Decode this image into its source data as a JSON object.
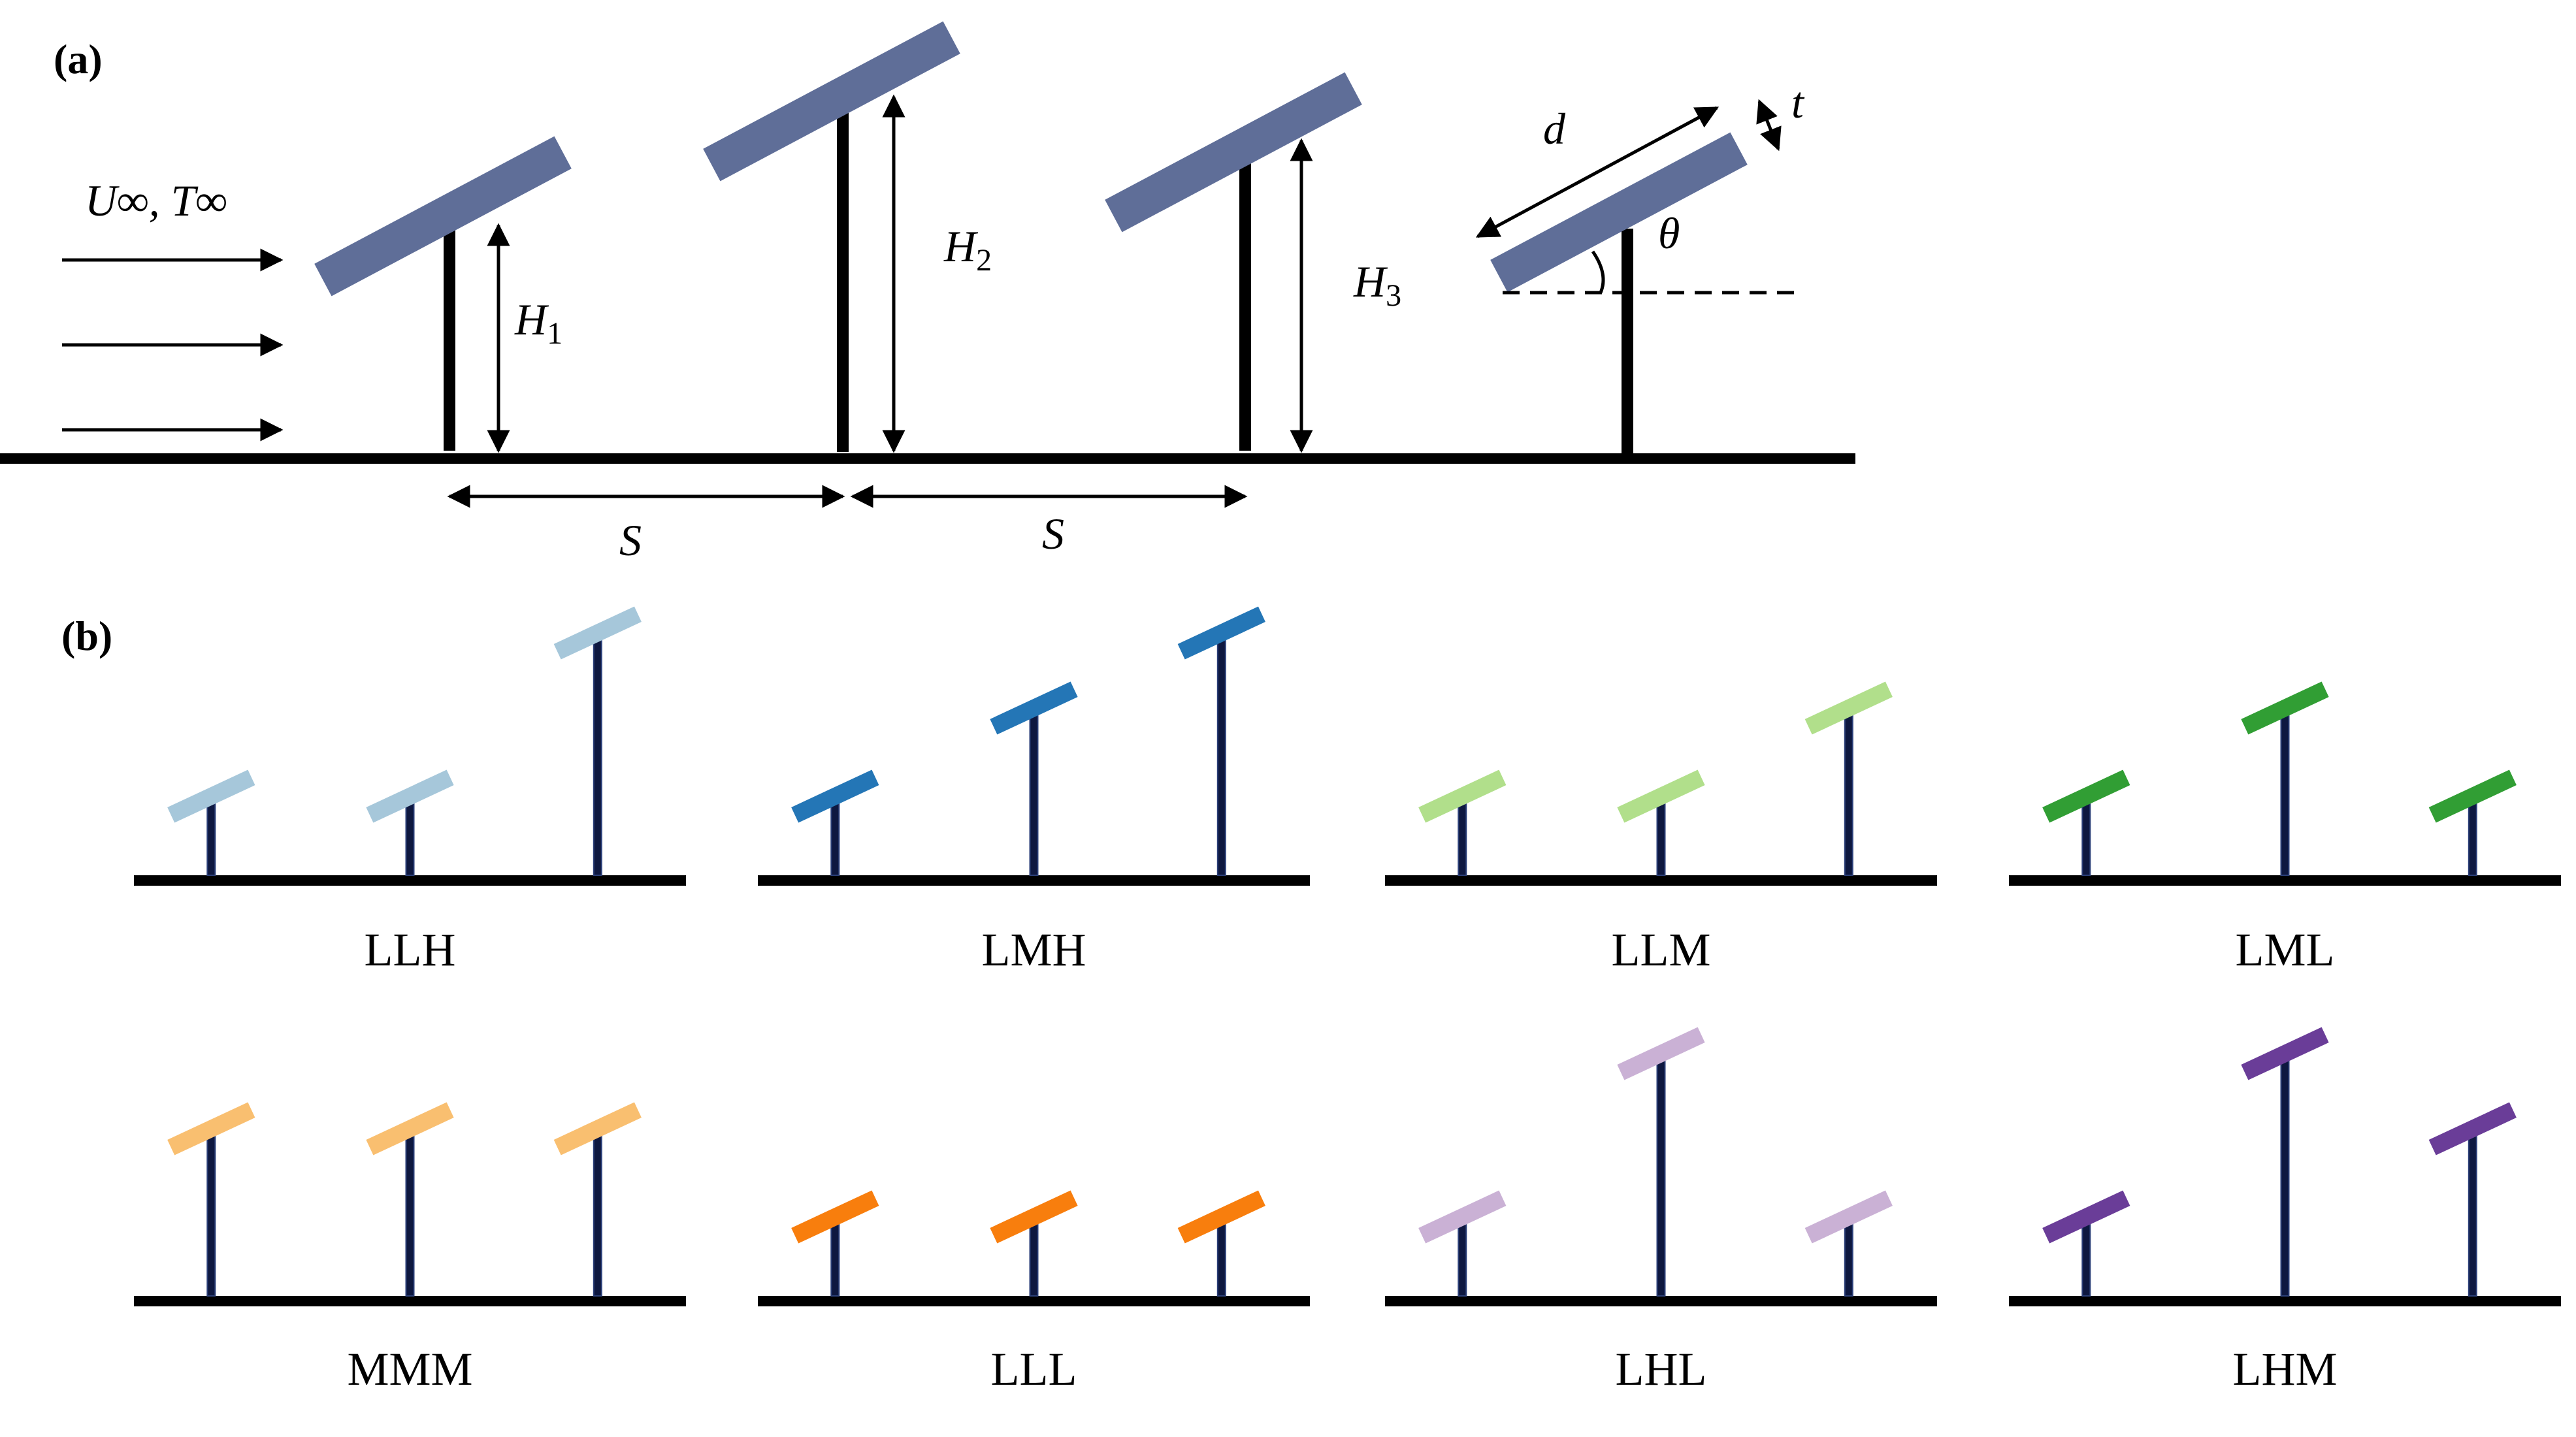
{
  "panel_a": {
    "label": "(a)",
    "flow_label": "U∞, T∞",
    "h1_label": "H",
    "h1_sub": "1",
    "h2_label": "H",
    "h2_sub": "2",
    "h3_label": "H",
    "h3_sub": "3",
    "spacing_label_1": "S",
    "spacing_label_2": "S",
    "d_label": "d",
    "t_label": "t",
    "theta_label": "θ",
    "panel_color": "#5F6E98"
  },
  "panel_b": {
    "label": "(b)",
    "configs": [
      {
        "label": "LLH",
        "levels": [
          "L",
          "L",
          "H"
        ],
        "color": "#A6C7DA"
      },
      {
        "label": "LMH",
        "levels": [
          "L",
          "M",
          "H"
        ],
        "color": "#2476B6"
      },
      {
        "label": "LLM",
        "levels": [
          "L",
          "L",
          "M"
        ],
        "color": "#B1DF8B"
      },
      {
        "label": "LML",
        "levels": [
          "L",
          "M",
          "L"
        ],
        "color": "#319E34"
      },
      {
        "label": "MMM",
        "levels": [
          "M",
          "M",
          "M"
        ],
        "color": "#F9BF70"
      },
      {
        "label": "LLL",
        "levels": [
          "L",
          "L",
          "L"
        ],
        "color": "#F87E0D"
      },
      {
        "label": "LHL",
        "levels": [
          "L",
          "H",
          "L"
        ],
        "color": "#CAB1D5"
      },
      {
        "label": "LHM",
        "levels": [
          "L",
          "H",
          "M"
        ],
        "color": "#6A3D98"
      }
    ]
  }
}
